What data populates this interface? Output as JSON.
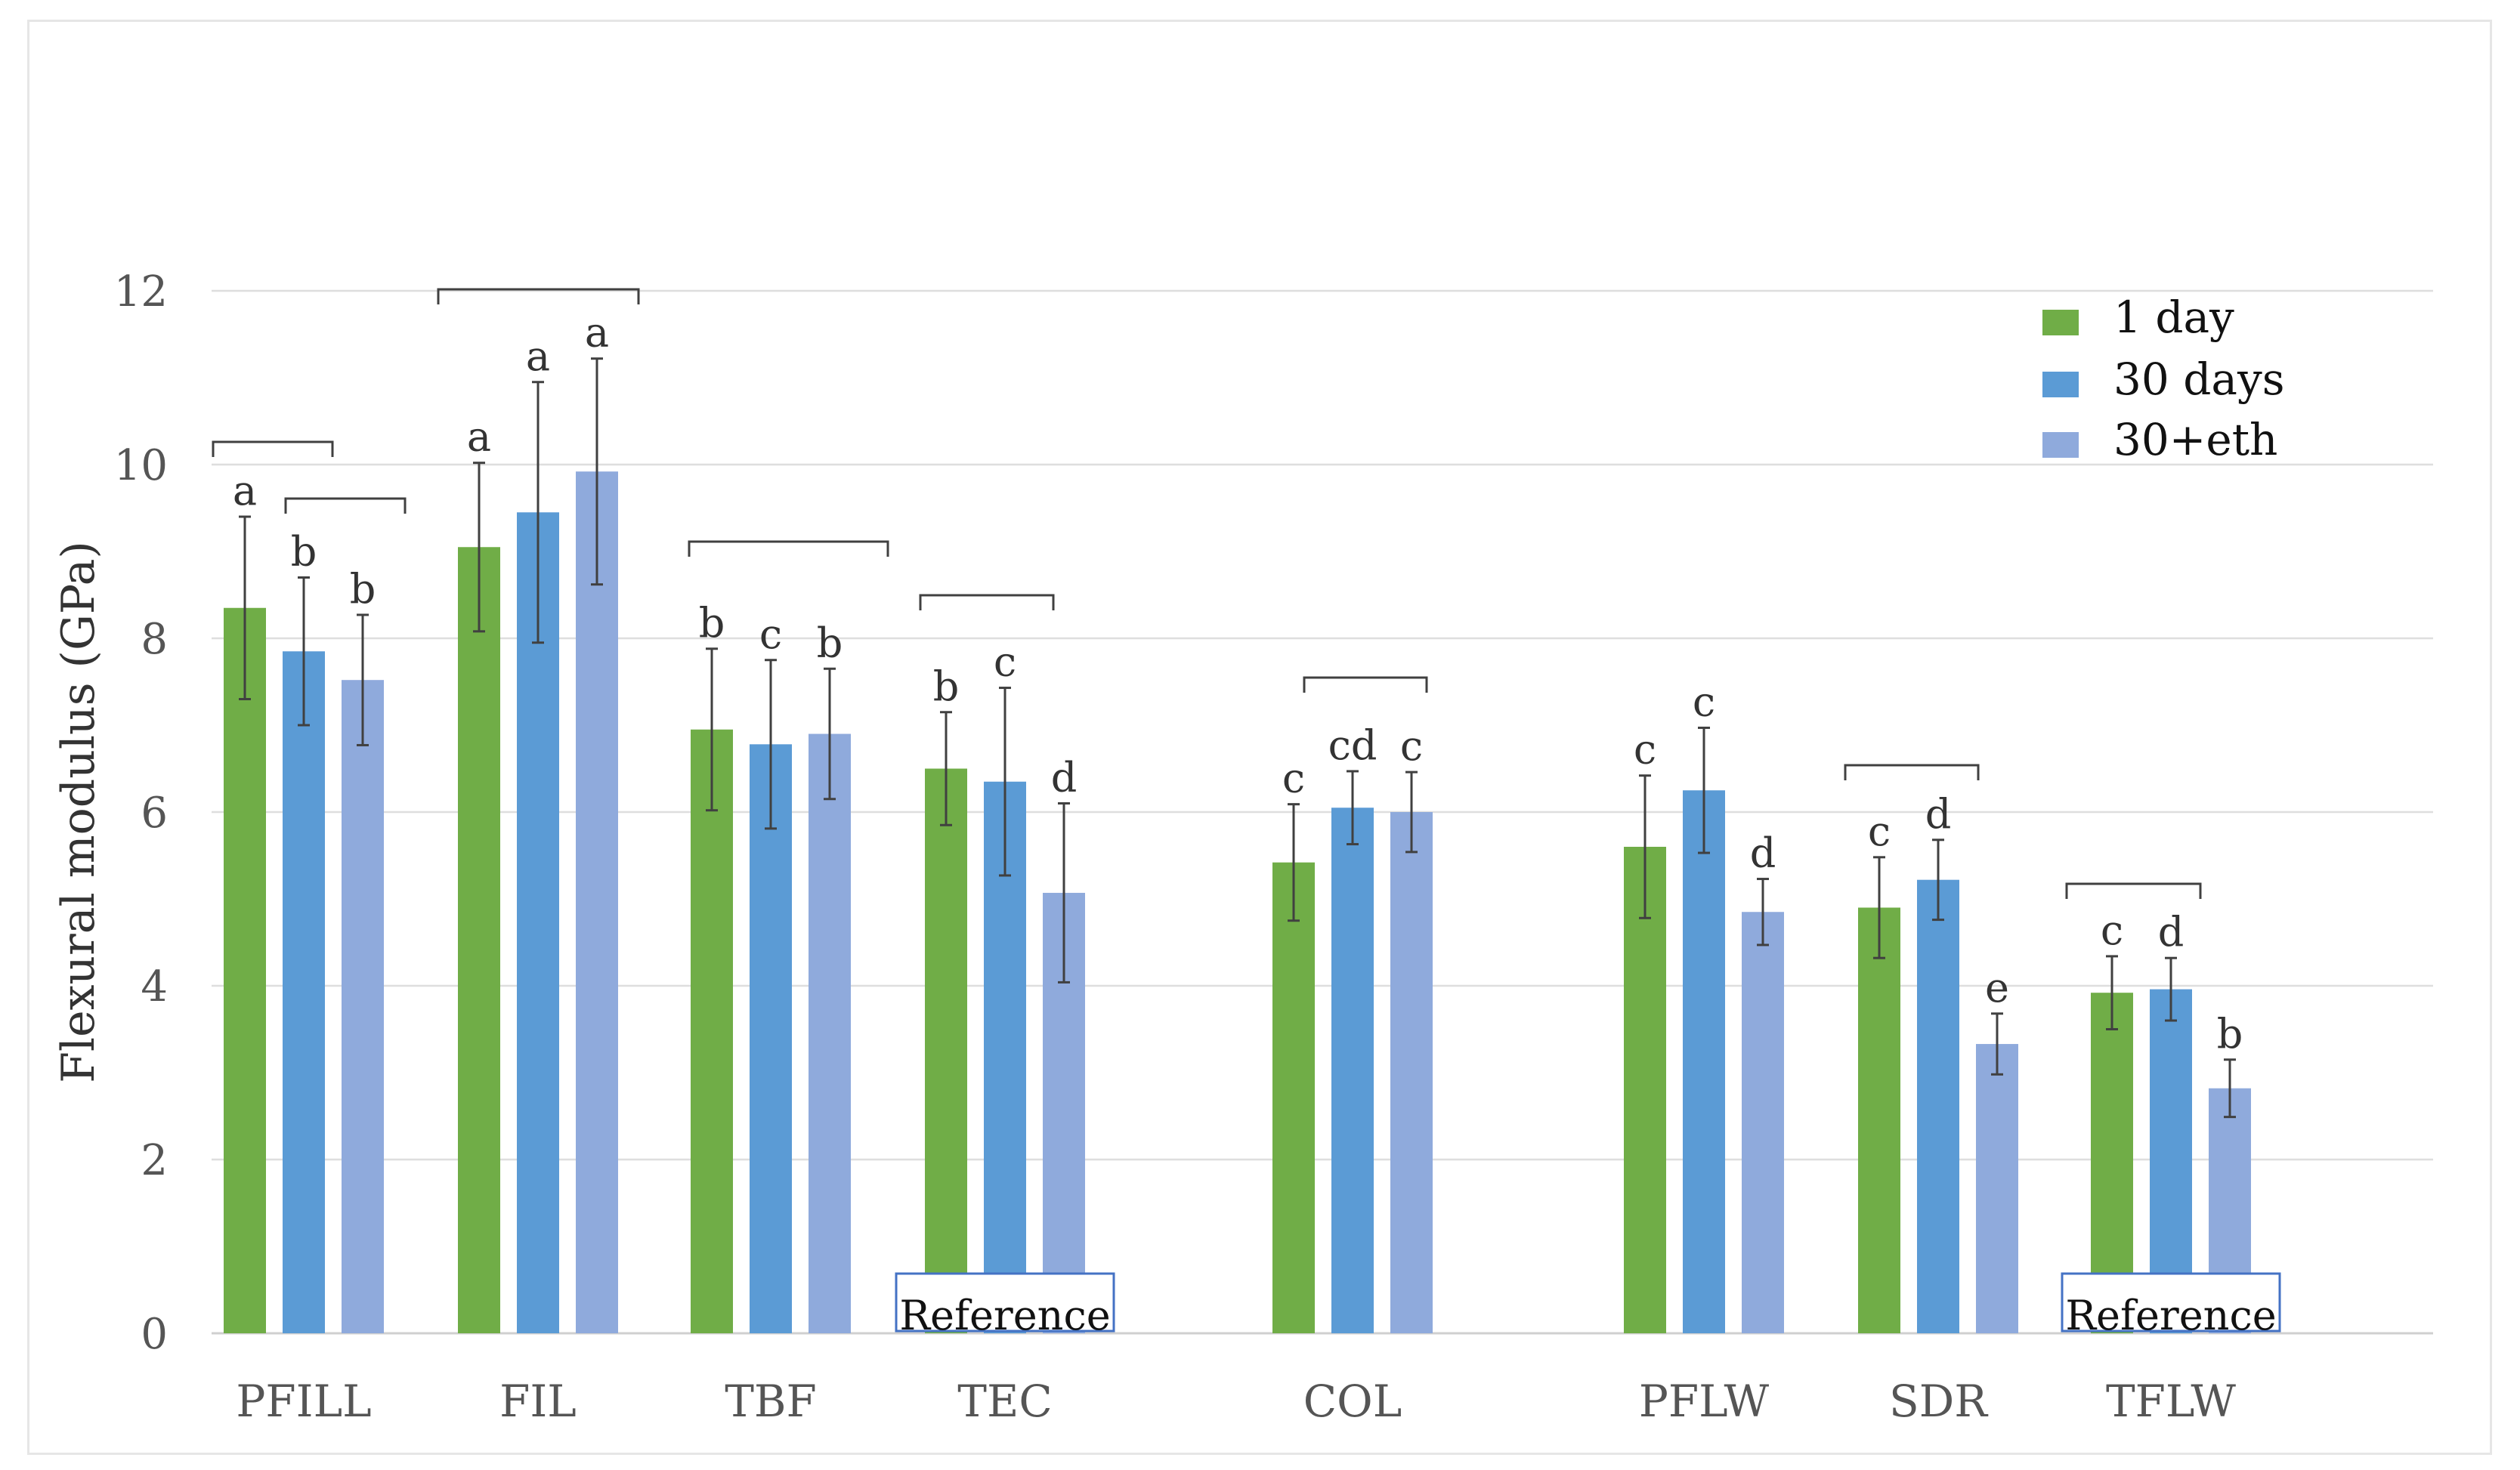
{
  "chart_data": {
    "type": "bar",
    "title": "",
    "xlabel": "",
    "ylabel": "Flexural modulus (GPa)",
    "ylim": [
      0,
      12
    ],
    "yticks": [
      0,
      2,
      4,
      6,
      8,
      10,
      12
    ],
    "grid": true,
    "legend_position": "top-right",
    "categories": [
      "PFILL",
      "FIL",
      "TBF",
      "TEC",
      "COL",
      "PFLW",
      "SDR",
      "TFLW"
    ],
    "series": [
      {
        "name": "1 day",
        "color": "#70ad47",
        "values": [
          8.35,
          9.05,
          6.95,
          6.5,
          5.42,
          5.6,
          4.9,
          3.92
        ],
        "errors": [
          1.05,
          0.97,
          0.93,
          0.65,
          0.67,
          0.82,
          0.58,
          0.42
        ],
        "letters": [
          "a",
          "a",
          "b",
          "b",
          "c",
          "c",
          "c",
          "c"
        ]
      },
      {
        "name": "30 days",
        "color": "#5b9bd5",
        "values": [
          7.85,
          9.45,
          6.78,
          6.35,
          6.05,
          6.25,
          5.22,
          3.96
        ],
        "errors": [
          0.85,
          1.5,
          0.97,
          1.08,
          0.42,
          0.72,
          0.46,
          0.36
        ],
        "letters": [
          "b",
          "a",
          "c",
          "c",
          "cd",
          "c",
          "d",
          "d"
        ]
      },
      {
        "name": "30+eth",
        "color": "#8faadc",
        "values": [
          7.52,
          9.92,
          6.9,
          5.07,
          6.0,
          4.85,
          3.33,
          2.82
        ],
        "errors": [
          0.75,
          1.3,
          0.75,
          1.03,
          0.46,
          0.38,
          0.35,
          0.33
        ],
        "letters": [
          "b",
          "a",
          "b",
          "d",
          "c",
          "d",
          "e",
          "b"
        ]
      }
    ],
    "annotations": [
      {
        "category": "TEC",
        "text": "Reference"
      },
      {
        "category": "TFLW",
        "text": "Reference"
      }
    ]
  }
}
